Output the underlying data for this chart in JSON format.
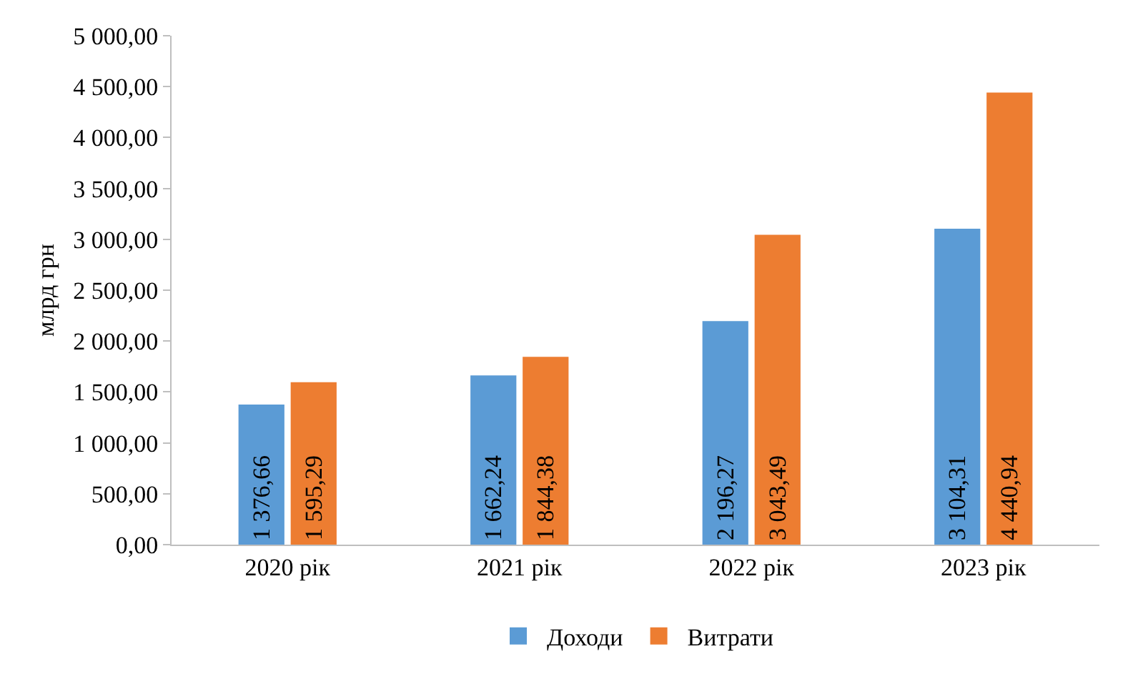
{
  "chart_data": {
    "type": "bar",
    "ylabel": "млрд грн",
    "categories": [
      "2020 рік",
      "2021 рік",
      "2022 рік",
      "2023 рік"
    ],
    "series": [
      {
        "name": "Доходи",
        "color": "#5b9bd5",
        "values": [
          1376.66,
          1662.24,
          2196.27,
          3104.31
        ],
        "value_labels": [
          "1 376,66",
          "1 662,24",
          "2 196,27",
          "3 104,31"
        ]
      },
      {
        "name": "Витрати",
        "color": "#ed7d31",
        "values": [
          1595.29,
          1844.38,
          3043.49,
          4440.94
        ],
        "value_labels": [
          "1 595,29",
          "1 844,38",
          "3 043,49",
          "4 440,94"
        ]
      }
    ],
    "ylim": [
      0,
      5000
    ],
    "yticks": [
      {
        "value": 0,
        "label": "0,00"
      },
      {
        "value": 500,
        "label": "500,00"
      },
      {
        "value": 1000,
        "label": "1 000,00"
      },
      {
        "value": 1500,
        "label": "1 500,00"
      },
      {
        "value": 2000,
        "label": "2 000,00"
      },
      {
        "value": 2500,
        "label": "2 500,00"
      },
      {
        "value": 3000,
        "label": "3 000,00"
      },
      {
        "value": 3500,
        "label": "3 500,00"
      },
      {
        "value": 4000,
        "label": "4 000,00"
      },
      {
        "value": 4500,
        "label": "4 500,00"
      },
      {
        "value": 5000,
        "label": "5 000,00"
      }
    ],
    "grid": false,
    "legend": "bottom"
  }
}
